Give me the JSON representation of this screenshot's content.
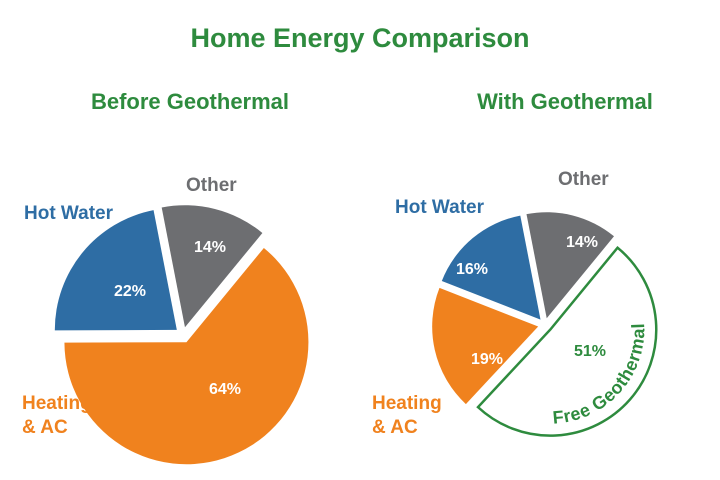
{
  "title": "Home Energy Comparison",
  "chart_data": [
    {
      "type": "pie",
      "title": "Before Geothermal",
      "categories": [
        "Other",
        "Heating & AC",
        "Hot Water"
      ],
      "values": [
        14,
        64,
        22
      ],
      "value_labels": [
        "14%",
        "64%",
        "22%"
      ],
      "colors": [
        "#6d6e71",
        "#f0821e",
        "#2e6da4"
      ],
      "accent_color": "#2e8b3e"
    },
    {
      "type": "pie",
      "title": "With Geothermal",
      "categories": [
        "Other",
        "Free Geothermal",
        "Heating & AC",
        "Hot Water"
      ],
      "values": [
        14,
        51,
        19,
        16
      ],
      "value_labels": [
        "14%",
        "51%",
        "19%",
        "16%"
      ],
      "colors": [
        "#6d6e71",
        "#ffffff",
        "#f0821e",
        "#2e6da4"
      ],
      "accent_color": "#2e8b3e"
    }
  ]
}
